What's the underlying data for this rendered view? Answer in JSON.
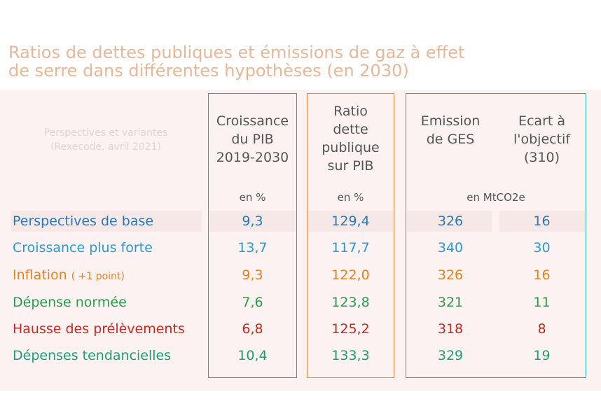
{
  "title_lines": [
    "Ratios de dettes publiques et émissions de gaz à effet",
    "de serre dans différentes hypothèses (en 2030)"
  ],
  "perspectives_lines": [
    "Perspectives et variantes",
    "(Rexecode, avril 2021)"
  ],
  "headers": {
    "croissance": [
      "Croissance",
      "du PIB",
      "2019-2030"
    ],
    "ratio": [
      "Ratio",
      "dette",
      "publique",
      "sur PIB"
    ],
    "emission": [
      "Emission",
      "de GES"
    ],
    "ecart": [
      "Ecart à",
      "l'objectif",
      "(310)"
    ]
  },
  "units": {
    "croissance": "en %",
    "ratio": "en %",
    "emission": "en MtCO2e"
  },
  "box_colors": {
    "croissance": "#2f9ad3",
    "ratio": "#f08a3c",
    "emission": "#2aa89a"
  },
  "rows": [
    {
      "label": "Perspectives de base",
      "note": "",
      "color": "#2a78b8",
      "croissance": "9,3",
      "ratio": "129,4",
      "emission": "326",
      "ecart": "16"
    },
    {
      "label": "Croissance plus forte",
      "note": "",
      "color": "#2a9ad3",
      "croissance": "13,7",
      "ratio": "117,7",
      "emission": "340",
      "ecart": "30"
    },
    {
      "label": "Inflation",
      "note": "( +1 point)",
      "color": "#e6821e",
      "croissance": "9,3",
      "ratio": "122,0",
      "emission": "326",
      "ecart": "16"
    },
    {
      "label": "Dépense normée",
      "note": "",
      "color": "#2e9a4c",
      "croissance": "7,6",
      "ratio": "123,8",
      "emission": "321",
      "ecart": "11"
    },
    {
      "label": "Hausse des prélèvements",
      "note": "",
      "color": "#c8281e",
      "croissance": "6,8",
      "ratio": "125,2",
      "emission": "318",
      "ecart": "8"
    },
    {
      "label": "Dépenses tendancielles",
      "note": "",
      "color": "#229b77",
      "croissance": "10,4",
      "ratio": "133,3",
      "emission": "329",
      "ecart": "19"
    }
  ]
}
